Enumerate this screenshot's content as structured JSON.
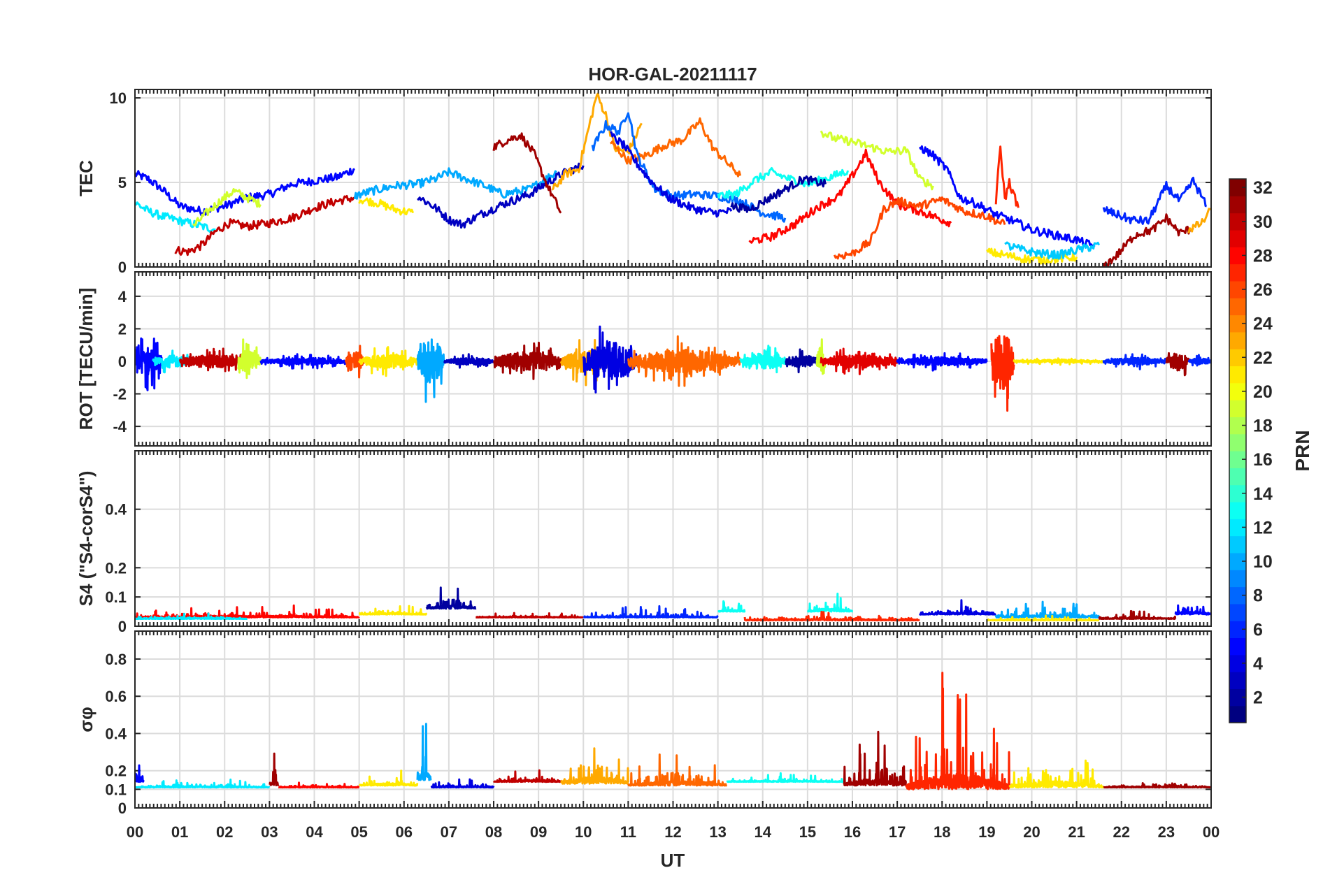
{
  "chart_data": {
    "type": "line",
    "title": "HOR-GAL-20211117",
    "xlabel": "UT",
    "x_ticks": [
      "00",
      "01",
      "02",
      "03",
      "04",
      "05",
      "06",
      "07",
      "08",
      "09",
      "10",
      "11",
      "12",
      "13",
      "14",
      "15",
      "16",
      "17",
      "18",
      "19",
      "20",
      "21",
      "22",
      "23",
      "00"
    ],
    "xlim": [
      0,
      24
    ],
    "grid": true,
    "colorbar": {
      "label": "PRN",
      "colormap": "jet",
      "range": [
        1,
        32
      ],
      "ticks": [
        2,
        4,
        6,
        8,
        10,
        12,
        14,
        16,
        18,
        20,
        22,
        24,
        26,
        28,
        30,
        32
      ]
    },
    "panels": [
      {
        "ylabel": "TEC",
        "ylim": [
          0,
          10.5
        ],
        "yticks": [
          0,
          5,
          10
        ],
        "series": [
          {
            "prn": 5,
            "x": [
              0,
              0.3,
              0.6,
              1.0,
              1.5,
              2.0,
              2.5,
              3.0,
              3.5,
              4.0,
              4.5,
              4.9
            ],
            "y": [
              5.5,
              5.2,
              4.6,
              3.6,
              3.3,
              3.6,
              4.1,
              4.3,
              4.9,
              5.1,
              5.3,
              5.8
            ]
          },
          {
            "prn": 12,
            "x": [
              0,
              0.3,
              0.6,
              0.9,
              1.2,
              1.5,
              1.8
            ],
            "y": [
              3.8,
              3.3,
              3.0,
              2.8,
              2.6,
              2.4,
              2.2
            ]
          },
          {
            "prn": 30,
            "x": [
              0.9,
              1.2,
              1.5,
              1.8,
              2.1,
              2.5,
              3.0,
              3.5,
              4.0,
              4.5,
              4.9
            ],
            "y": [
              1.0,
              0.9,
              1.3,
              2.1,
              2.6,
              2.4,
              2.6,
              2.9,
              3.5,
              3.9,
              4.1
            ]
          },
          {
            "prn": 19,
            "x": [
              1.3,
              1.6,
              1.9,
              2.2,
              2.5,
              2.8
            ],
            "y": [
              2.4,
              3.2,
              3.9,
              4.5,
              4.1,
              3.7
            ]
          },
          {
            "prn": 21,
            "x": [
              5.0,
              5.4,
              5.8,
              6.2
            ],
            "y": [
              4.0,
              3.8,
              3.4,
              3.2
            ]
          },
          {
            "prn": 10,
            "x": [
              4.9,
              5.3,
              5.8,
              6.3,
              6.7,
              7.0,
              7.4,
              7.8,
              8.2,
              8.8,
              9.4
            ],
            "y": [
              4.2,
              4.5,
              4.8,
              4.9,
              5.2,
              5.6,
              5.2,
              4.8,
              4.3,
              4.6,
              5.6
            ]
          },
          {
            "prn": 3,
            "x": [
              6.3,
              6.7,
              7.0,
              7.3,
              7.7,
              8.2,
              8.8,
              9.2,
              9.6,
              10.0
            ],
            "y": [
              4.2,
              3.5,
              2.8,
              2.5,
              3.1,
              3.7,
              4.3,
              5.0,
              5.6,
              6.0
            ]
          },
          {
            "prn": 31,
            "x": [
              8.0,
              8.3,
              8.6,
              8.9,
              9.2,
              9.5
            ],
            "y": [
              7.1,
              7.5,
              7.8,
              6.7,
              4.8,
              3.2
            ]
          },
          {
            "prn": 23,
            "x": [
              9.3,
              9.6,
              9.9,
              10.1,
              10.3,
              10.5,
              10.7,
              11.0,
              11.3
            ],
            "y": [
              4.5,
              5.5,
              5.8,
              8.0,
              10.2,
              9.0,
              7.0,
              6.8,
              8.5
            ]
          },
          {
            "prn": 25,
            "x": [
              10.6,
              11.0,
              11.4,
              11.8,
              12.2,
              12.6,
              12.9,
              13.2,
              13.5
            ],
            "y": [
              7.4,
              6.3,
              6.6,
              7.2,
              7.5,
              8.6,
              7.0,
              6.2,
              5.4
            ]
          },
          {
            "prn": 8,
            "x": [
              10.2,
              10.5,
              10.8,
              11.0,
              11.2,
              11.6,
              12.0,
              12.5,
              13.0,
              13.5,
              14.0,
              14.5
            ],
            "y": [
              7.0,
              8.4,
              8.0,
              9.3,
              6.6,
              4.6,
              4.2,
              4.3,
              4.2,
              3.9,
              3.2,
              2.9
            ]
          },
          {
            "prn": 4,
            "x": [
              10.6,
              10.9,
              11.2,
              11.5,
              11.9,
              12.4,
              12.9,
              13.3
            ],
            "y": [
              7.8,
              7.2,
              6.1,
              5.1,
              4.1,
              3.5,
              3.2,
              3.3
            ]
          },
          {
            "prn": 13,
            "x": [
              13.0,
              13.4,
              13.8,
              14.2,
              14.6,
              15.0,
              15.5,
              15.9
            ],
            "y": [
              4.2,
              4.3,
              5.1,
              5.6,
              5.2,
              4.9,
              5.3,
              5.7
            ]
          },
          {
            "prn": 2,
            "x": [
              13.3,
              13.7,
              14.1,
              14.5,
              14.9,
              15.4
            ],
            "y": [
              3.6,
              3.4,
              4.0,
              4.6,
              5.2,
              4.9
            ]
          },
          {
            "prn": 28,
            "x": [
              13.7,
              14.2,
              14.7,
              15.2,
              15.7,
              16.0,
              16.3,
              16.6,
              17.0,
              17.4,
              17.8,
              18.2
            ],
            "y": [
              1.5,
              1.8,
              2.5,
              3.5,
              4.2,
              5.4,
              6.7,
              5.0,
              3.7,
              3.4,
              3.0,
              2.6
            ]
          },
          {
            "prn": 19,
            "x": [
              15.3,
              15.6,
              16.0,
              16.4,
              16.8,
              17.2,
              17.5,
              17.8
            ],
            "y": [
              8.0,
              7.6,
              7.4,
              7.1,
              6.8,
              6.9,
              5.2,
              4.8
            ]
          },
          {
            "prn": 26,
            "x": [
              15.6,
              16.0,
              16.4,
              16.7,
              17.0,
              17.5,
              18.0,
              18.5,
              19.0,
              19.4
            ],
            "y": [
              0.6,
              0.8,
              1.5,
              3.4,
              3.9,
              3.6,
              4.0,
              3.3,
              3.0,
              2.5
            ]
          },
          {
            "prn": 5,
            "x": [
              17.5,
              17.8,
              18.1,
              18.4,
              18.8,
              19.2,
              19.6,
              20.0,
              20.5,
              21.0,
              21.4
            ],
            "y": [
              7.1,
              6.6,
              5.8,
              4.1,
              3.7,
              3.1,
              2.7,
              2.2,
              1.9,
              1.6,
              1.2
            ]
          },
          {
            "prn": 27,
            "x": [
              19.2,
              19.3,
              19.4,
              19.5,
              19.7
            ],
            "y": [
              3.9,
              7.1,
              4.0,
              5.0,
              3.5
            ]
          },
          {
            "prn": 21,
            "x": [
              19.0,
              19.4,
              19.8,
              20.2,
              20.6,
              21.0
            ],
            "y": [
              0.9,
              0.7,
              0.5,
              0.4,
              0.5,
              0.6
            ]
          },
          {
            "prn": 11,
            "x": [
              19.4,
              19.8,
              20.2,
              20.6,
              21.0,
              21.5
            ],
            "y": [
              1.3,
              1.0,
              0.8,
              0.7,
              1.0,
              1.3
            ]
          },
          {
            "prn": 6,
            "x": [
              21.6,
              21.9,
              22.2,
              22.6,
              23.0,
              23.3,
              23.6,
              23.9
            ],
            "y": [
              3.4,
              3.1,
              2.8,
              2.7,
              4.8,
              3.9,
              5.1,
              3.6
            ]
          },
          {
            "prn": 31,
            "x": [
              21.6,
              21.9,
              22.3,
              22.7,
              23.0,
              23.3,
              23.6
            ],
            "y": [
              0,
              0.7,
              1.9,
              2.2,
              2.9,
              2.0,
              2.3
            ]
          },
          {
            "prn": 23,
            "x": [
              23.5,
              23.8,
              24.0
            ],
            "y": [
              2.2,
              2.6,
              3.4
            ]
          }
        ]
      },
      {
        "ylabel": "ROT [TECU/min]",
        "ylim": [
          -5.2,
          5.5
        ],
        "yticks": [
          -4,
          -2,
          0,
          2,
          4
        ],
        "style": "noise",
        "series": [
          {
            "prn": 5,
            "x_start": 0.0,
            "x_end": 0.6,
            "amp": 2.0
          },
          {
            "prn": 12,
            "x_start": 0.4,
            "x_end": 1.3,
            "amp": 0.8
          },
          {
            "prn": 30,
            "x_start": 1.0,
            "x_end": 2.5,
            "amp": 0.9
          },
          {
            "prn": 19,
            "x_start": 2.3,
            "x_end": 2.8,
            "amp": 1.8
          },
          {
            "prn": 5,
            "x_start": 2.8,
            "x_end": 4.8,
            "amp": 0.5
          },
          {
            "prn": 26,
            "x_start": 4.7,
            "x_end": 5.1,
            "amp": 1.5
          },
          {
            "prn": 21,
            "x_start": 5.0,
            "x_end": 6.3,
            "amp": 1.0
          },
          {
            "prn": 10,
            "x_start": 6.3,
            "x_end": 6.9,
            "amp": 3.0
          },
          {
            "prn": 3,
            "x_start": 6.9,
            "x_end": 8.0,
            "amp": 0.5
          },
          {
            "prn": 31,
            "x_start": 8.0,
            "x_end": 9.5,
            "amp": 1.3
          },
          {
            "prn": 23,
            "x_start": 9.5,
            "x_end": 10.6,
            "amp": 1.5
          },
          {
            "prn": 4,
            "x_start": 10.0,
            "x_end": 11.2,
            "amp": 2.6
          },
          {
            "prn": 25,
            "x_start": 11.0,
            "x_end": 13.5,
            "amp": 1.6
          },
          {
            "prn": 13,
            "x_start": 13.5,
            "x_end": 14.5,
            "amp": 1.1
          },
          {
            "prn": 2,
            "x_start": 14.5,
            "x_end": 15.3,
            "amp": 0.8
          },
          {
            "prn": 19,
            "x_start": 15.2,
            "x_end": 15.4,
            "amp": 2.0
          },
          {
            "prn": 29,
            "x_start": 15.3,
            "x_end": 17.0,
            "amp": 0.9
          },
          {
            "prn": 5,
            "x_start": 17.0,
            "x_end": 19.0,
            "amp": 0.6
          },
          {
            "prn": 27,
            "x_start": 19.1,
            "x_end": 19.6,
            "amp": 4.5
          },
          {
            "prn": 21,
            "x_start": 19.6,
            "x_end": 21.6,
            "amp": 0.25
          },
          {
            "prn": 6,
            "x_start": 21.6,
            "x_end": 23.0,
            "amp": 0.5
          },
          {
            "prn": 31,
            "x_start": 23.0,
            "x_end": 23.5,
            "amp": 1.3
          },
          {
            "prn": 6,
            "x_start": 23.5,
            "x_end": 24.0,
            "amp": 0.4
          }
        ]
      },
      {
        "ylabel": "S4 (\"S4-corS4\")",
        "ylim": [
          0,
          0.6
        ],
        "yticks": [
          0,
          0.1,
          0.2,
          0.4
        ],
        "style": "noise-positive",
        "series": [
          {
            "prn": 28,
            "x_start": 0.0,
            "x_end": 5.0,
            "base": 0.03,
            "amp": 0.05
          },
          {
            "prn": 12,
            "x_start": 0.0,
            "x_end": 2.5,
            "base": 0.025,
            "amp": 0.02
          },
          {
            "prn": 21,
            "x_start": 5.0,
            "x_end": 6.5,
            "base": 0.04,
            "amp": 0.04
          },
          {
            "prn": 2,
            "x_start": 6.5,
            "x_end": 7.6,
            "base": 0.06,
            "amp": 0.09
          },
          {
            "prn": 30,
            "x_start": 7.6,
            "x_end": 10.0,
            "base": 0.03,
            "amp": 0.02
          },
          {
            "prn": 6,
            "x_start": 10.0,
            "x_end": 13.0,
            "base": 0.03,
            "amp": 0.04
          },
          {
            "prn": 13,
            "x_start": 13.0,
            "x_end": 13.6,
            "base": 0.05,
            "amp": 0.05
          },
          {
            "prn": 13,
            "x_start": 15.0,
            "x_end": 16.0,
            "base": 0.05,
            "amp": 0.09
          },
          {
            "prn": 27,
            "x_start": 13.6,
            "x_end": 17.5,
            "base": 0.02,
            "amp": 0.04
          },
          {
            "prn": 4,
            "x_start": 17.5,
            "x_end": 19.2,
            "base": 0.04,
            "amp": 0.05
          },
          {
            "prn": 10,
            "x_start": 19.2,
            "x_end": 21.5,
            "base": 0.03,
            "amp": 0.06
          },
          {
            "prn": 21,
            "x_start": 19.0,
            "x_end": 21.5,
            "base": 0.02,
            "amp": 0.02
          },
          {
            "prn": 31,
            "x_start": 21.5,
            "x_end": 23.2,
            "base": 0.025,
            "amp": 0.03
          },
          {
            "prn": 5,
            "x_start": 23.2,
            "x_end": 24.0,
            "base": 0.04,
            "amp": 0.09
          }
        ]
      },
      {
        "ylabel": "σφ",
        "ylim": [
          0,
          0.95
        ],
        "yticks": [
          0,
          0.1,
          0.2,
          0.4,
          0.6,
          0.8
        ],
        "style": "noise-positive",
        "series": [
          {
            "prn": 5,
            "x_start": 0.0,
            "x_end": 0.2,
            "base": 0.14,
            "amp": 0.3
          },
          {
            "prn": 12,
            "x_start": 0.0,
            "x_end": 3.0,
            "base": 0.11,
            "amp": 0.05
          },
          {
            "prn": 31,
            "x_start": 3.0,
            "x_end": 3.2,
            "base": 0.12,
            "amp": 0.3
          },
          {
            "prn": 28,
            "x_start": 3.2,
            "x_end": 5.0,
            "base": 0.11,
            "amp": 0.04
          },
          {
            "prn": 21,
            "x_start": 5.0,
            "x_end": 6.3,
            "base": 0.12,
            "amp": 0.1
          },
          {
            "prn": 10,
            "x_start": 6.3,
            "x_end": 6.6,
            "base": 0.15,
            "amp": 0.4
          },
          {
            "prn": 4,
            "x_start": 6.6,
            "x_end": 8.0,
            "base": 0.11,
            "amp": 0.05
          },
          {
            "prn": 30,
            "x_start": 8.0,
            "x_end": 9.5,
            "base": 0.14,
            "amp": 0.07
          },
          {
            "prn": 23,
            "x_start": 9.5,
            "x_end": 11.0,
            "base": 0.13,
            "amp": 0.3
          },
          {
            "prn": 25,
            "x_start": 11.0,
            "x_end": 13.2,
            "base": 0.12,
            "amp": 0.2
          },
          {
            "prn": 13,
            "x_start": 13.2,
            "x_end": 15.8,
            "base": 0.14,
            "amp": 0.05
          },
          {
            "prn": 31,
            "x_start": 15.8,
            "x_end": 17.2,
            "base": 0.12,
            "amp": 0.3
          },
          {
            "prn": 27,
            "x_start": 17.2,
            "x_end": 19.5,
            "base": 0.1,
            "amp": 0.7
          },
          {
            "prn": 21,
            "x_start": 19.5,
            "x_end": 21.6,
            "base": 0.11,
            "amp": 0.28
          },
          {
            "prn": 31,
            "x_start": 21.6,
            "x_end": 24.0,
            "base": 0.11,
            "amp": 0.05
          }
        ]
      }
    ]
  }
}
